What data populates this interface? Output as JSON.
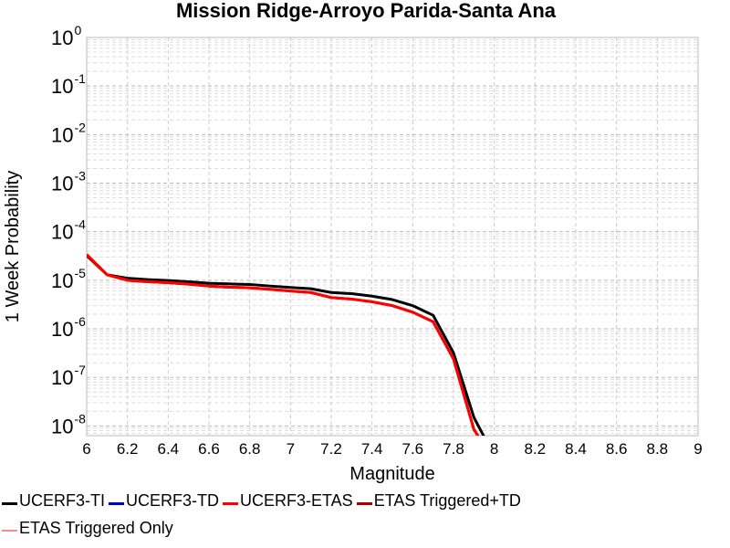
{
  "chart_data": {
    "type": "line",
    "title": "Mission Ridge-Arroyo Parida-Santa Ana",
    "xlabel": "Magnitude",
    "ylabel": "1 Week Probability",
    "xlim": [
      6,
      9
    ],
    "ylim_log10": [
      -8.2,
      0
    ],
    "y_scale": "log",
    "grid": true,
    "legend_position": "bottom",
    "x_ticks": [
      "6",
      "6.2",
      "6.4",
      "6.6",
      "6.8",
      "7",
      "7.2",
      "7.4",
      "7.6",
      "7.8",
      "8",
      "8.2",
      "8.4",
      "8.6",
      "8.8",
      "9"
    ],
    "y_ticks": [
      {
        "base": "10",
        "exp": "0",
        "value": 1
      },
      {
        "base": "10",
        "exp": "-1",
        "value": 0.1
      },
      {
        "base": "10",
        "exp": "-2",
        "value": 0.01
      },
      {
        "base": "10",
        "exp": "-3",
        "value": 0.001
      },
      {
        "base": "10",
        "exp": "-4",
        "value": 0.0001
      },
      {
        "base": "10",
        "exp": "-5",
        "value": 1e-05
      },
      {
        "base": "10",
        "exp": "-6",
        "value": 1e-06
      },
      {
        "base": "10",
        "exp": "-7",
        "value": 1e-07
      },
      {
        "base": "10",
        "exp": "-8",
        "value": 1e-08
      }
    ],
    "series": [
      {
        "name": "UCERF3-TI",
        "color": "#000000",
        "width": 3,
        "x": [
          6.0,
          6.1,
          6.2,
          6.3,
          6.4,
          6.5,
          6.6,
          6.7,
          6.8,
          6.9,
          7.0,
          7.1,
          7.2,
          7.3,
          7.4,
          7.5,
          7.6,
          7.7,
          7.8,
          7.9,
          7.95
        ],
        "y": [
          3.2e-05,
          1.3e-05,
          1.1e-05,
          1.03e-05,
          9.9e-06,
          9.3e-06,
          8.7e-06,
          8.4e-06,
          8.2e-06,
          7.6e-06,
          7.1e-06,
          6.7e-06,
          5.6e-06,
          5.3e-06,
          4.7e-06,
          4e-06,
          3e-06,
          1.9e-06,
          3.2e-07,
          1.5e-08,
          6e-09
        ]
      },
      {
        "name": "UCERF3-TD",
        "color": "#0000cc",
        "width": 3,
        "x": [],
        "y": []
      },
      {
        "name": "UCERF3-ETAS",
        "color": "#ff0000",
        "width": 3,
        "x": [
          6.0,
          6.1,
          6.2,
          6.3,
          6.4,
          6.5,
          6.6,
          6.7,
          6.8,
          6.9,
          7.0,
          7.1,
          7.2,
          7.3,
          7.4,
          7.5,
          7.6,
          7.7,
          7.8,
          7.9,
          7.95
        ],
        "y": [
          3.4e-05,
          1.3e-05,
          1e-05,
          9.3e-06,
          8.9e-06,
          8.3e-06,
          7.6e-06,
          7.2e-06,
          7e-06,
          6.5e-06,
          6e-06,
          5.6e-06,
          4.4e-06,
          4.1e-06,
          3.6e-06,
          3e-06,
          2.2e-06,
          1.4e-06,
          2.4e-07,
          8.5e-09,
          4e-09
        ]
      },
      {
        "name": "ETAS Triggered+TD",
        "color": "#aa0000",
        "width": 3,
        "x": [
          6.0,
          6.1,
          6.2,
          6.3,
          6.4,
          6.5,
          6.6,
          6.7,
          6.8,
          6.9,
          7.0,
          7.1,
          7.2,
          7.3,
          7.4,
          7.5,
          7.6,
          7.7,
          7.8,
          7.9,
          7.95
        ],
        "y": [
          3.3e-05,
          1.3e-05,
          1e-05,
          9.3e-06,
          8.9e-06,
          8.3e-06,
          7.6e-06,
          7.2e-06,
          7e-06,
          6.5e-06,
          6e-06,
          5.6e-06,
          4.4e-06,
          4.1e-06,
          3.6e-06,
          3e-06,
          2.2e-06,
          1.4e-06,
          2.4e-07,
          8.5e-09,
          4e-09
        ]
      },
      {
        "name": "ETAS Triggered Only",
        "color": "#ff8888",
        "width": 1.5,
        "x": [],
        "y": []
      }
    ]
  }
}
